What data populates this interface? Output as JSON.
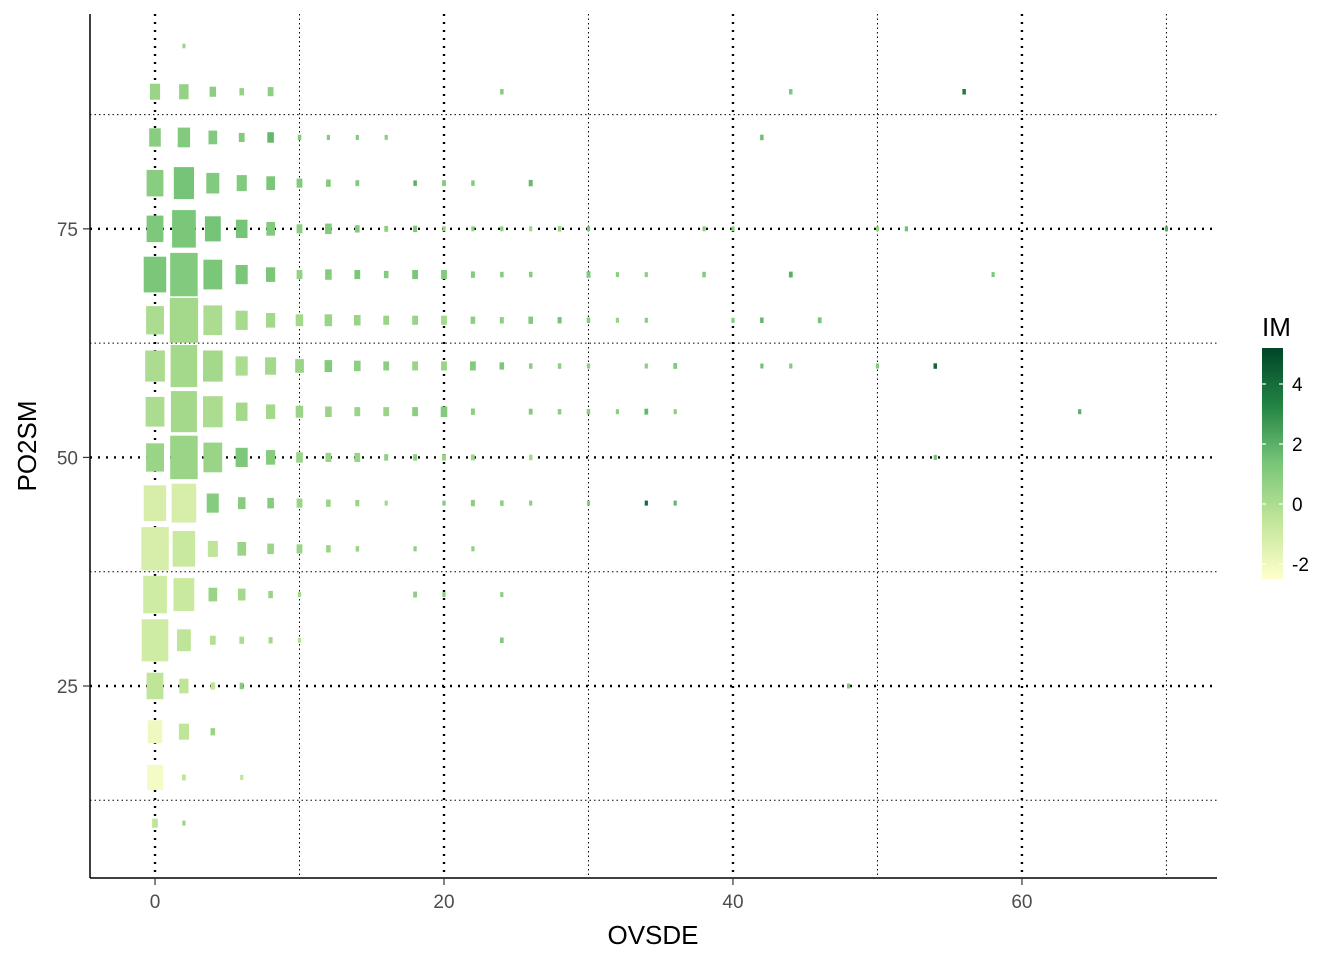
{
  "chart_data": {
    "type": "heatmap",
    "title": "",
    "xlabel": "OVSDE",
    "ylabel": "PO2SM",
    "xlim": [
      -4.5,
      73.5
    ],
    "ylim": [
      4,
      98.5
    ],
    "x_ticks": [
      0,
      20,
      40,
      60
    ],
    "y_ticks": [
      25,
      50,
      75
    ],
    "x_tick_labels": [
      "0",
      "20",
      "40",
      "60"
    ],
    "y_tick_labels": [
      "25",
      "50",
      "75"
    ],
    "x_minor_gridlines": [
      10,
      30,
      50,
      70
    ],
    "y_minor_gridlines": [
      12.5,
      37.5,
      62.5,
      87.5
    ],
    "grid": true,
    "legend": {
      "title": "IM",
      "position": "right",
      "range": [
        -2.5,
        5.2
      ],
      "tick_values": [
        4,
        2,
        0,
        -2
      ],
      "tick_labels": [
        "4",
        "2",
        "0",
        "-2"
      ],
      "color_stops": [
        "#ffffcc",
        "#c2e699",
        "#78c679",
        "#238443",
        "#004529"
      ]
    },
    "columns": [
      "x",
      "y",
      "size",
      "im"
    ],
    "cells": [
      [
        2,
        95,
        0.1,
        0.5
      ],
      [
        0,
        90,
        0.35,
        0.5
      ],
      [
        2,
        90,
        0.33,
        0.6
      ],
      [
        4,
        90,
        0.22,
        0.8
      ],
      [
        6,
        90,
        0.16,
        0.6
      ],
      [
        8,
        90,
        0.2,
        0.8
      ],
      [
        24,
        90,
        0.12,
        1.0
      ],
      [
        44,
        90,
        0.12,
        1.2
      ],
      [
        56,
        90,
        0.12,
        3.5
      ],
      [
        0,
        85,
        0.4,
        0.9
      ],
      [
        2,
        85,
        0.43,
        1.1
      ],
      [
        4,
        85,
        0.3,
        1.1
      ],
      [
        6,
        85,
        0.2,
        1.1
      ],
      [
        8,
        85,
        0.23,
        1.8
      ],
      [
        10,
        85,
        0.12,
        1.1
      ],
      [
        12,
        85,
        0.11,
        1.1
      ],
      [
        14,
        85,
        0.11,
        1.1
      ],
      [
        16,
        85,
        0.11,
        0.8
      ],
      [
        42,
        85,
        0.12,
        1.5
      ],
      [
        0,
        80,
        0.58,
        0.9
      ],
      [
        2,
        80,
        0.7,
        1.4
      ],
      [
        4,
        80,
        0.45,
        1.1
      ],
      [
        6,
        80,
        0.35,
        1.1
      ],
      [
        8,
        80,
        0.3,
        1.3
      ],
      [
        10,
        80,
        0.2,
        1.1
      ],
      [
        12,
        80,
        0.16,
        1.1
      ],
      [
        14,
        80,
        0.13,
        1.1
      ],
      [
        18,
        80,
        0.12,
        2.0
      ],
      [
        20,
        80,
        0.13,
        1.1
      ],
      [
        22,
        80,
        0.12,
        1.1
      ],
      [
        26,
        80,
        0.14,
        1.7
      ],
      [
        0,
        75,
        0.58,
        1.2
      ],
      [
        2,
        75,
        0.82,
        1.3
      ],
      [
        4,
        75,
        0.55,
        1.4
      ],
      [
        6,
        75,
        0.4,
        1.4
      ],
      [
        8,
        75,
        0.3,
        1.1
      ],
      [
        10,
        75,
        0.2,
        0.8
      ],
      [
        12,
        75,
        0.23,
        1.1
      ],
      [
        14,
        75,
        0.16,
        1.1
      ],
      [
        16,
        75,
        0.13,
        0.8
      ],
      [
        18,
        75,
        0.14,
        1.3
      ],
      [
        20,
        75,
        0.11,
        0.5
      ],
      [
        22,
        75,
        0.11,
        0.8
      ],
      [
        24,
        75,
        0.11,
        0.8
      ],
      [
        26,
        75,
        0.11,
        0.5
      ],
      [
        28,
        75,
        0.12,
        0.5
      ],
      [
        30,
        75,
        0.11,
        1.3
      ],
      [
        38,
        75,
        0.11,
        0.8
      ],
      [
        40,
        75,
        0.11,
        0.8
      ],
      [
        50,
        75,
        0.11,
        0.5
      ],
      [
        52,
        75,
        0.11,
        1.5
      ],
      [
        70,
        75,
        0.11,
        2.0
      ],
      [
        0,
        70,
        0.78,
        1.3
      ],
      [
        2,
        70,
        0.95,
        1.1
      ],
      [
        4,
        70,
        0.65,
        1.3
      ],
      [
        6,
        70,
        0.42,
        1.3
      ],
      [
        8,
        70,
        0.32,
        1.3
      ],
      [
        10,
        70,
        0.2,
        0.6
      ],
      [
        12,
        70,
        0.23,
        1.0
      ],
      [
        14,
        70,
        0.2,
        1.3
      ],
      [
        16,
        70,
        0.16,
        1.1
      ],
      [
        18,
        70,
        0.2,
        1.3
      ],
      [
        20,
        70,
        0.2,
        1.1
      ],
      [
        22,
        70,
        0.14,
        1.1
      ],
      [
        24,
        70,
        0.12,
        1.1
      ],
      [
        26,
        70,
        0.12,
        1.0
      ],
      [
        30,
        70,
        0.14,
        1.1
      ],
      [
        32,
        70,
        0.11,
        0.8
      ],
      [
        34,
        70,
        0.11,
        0.8
      ],
      [
        38,
        70,
        0.12,
        1.1
      ],
      [
        44,
        70,
        0.13,
        2.0
      ],
      [
        58,
        70,
        0.11,
        1.3
      ],
      [
        0,
        65,
        0.62,
        0.0
      ],
      [
        2,
        65,
        0.98,
        0.2
      ],
      [
        4,
        65,
        0.65,
        0.0
      ],
      [
        6,
        65,
        0.42,
        0.1
      ],
      [
        8,
        65,
        0.32,
        0.2
      ],
      [
        10,
        65,
        0.26,
        0.2
      ],
      [
        12,
        65,
        0.26,
        0.5
      ],
      [
        14,
        65,
        0.23,
        0.5
      ],
      [
        16,
        65,
        0.2,
        0.5
      ],
      [
        18,
        65,
        0.2,
        0.5
      ],
      [
        20,
        65,
        0.2,
        0.2
      ],
      [
        22,
        65,
        0.16,
        0.8
      ],
      [
        24,
        65,
        0.14,
        0.8
      ],
      [
        26,
        65,
        0.16,
        1.1
      ],
      [
        28,
        65,
        0.14,
        1.4
      ],
      [
        30,
        65,
        0.12,
        0.9
      ],
      [
        32,
        65,
        0.11,
        0.6
      ],
      [
        34,
        65,
        0.11,
        0.9
      ],
      [
        40,
        65,
        0.11,
        1.1
      ],
      [
        42,
        65,
        0.12,
        1.8
      ],
      [
        46,
        65,
        0.13,
        1.3
      ],
      [
        0,
        60,
        0.68,
        0.0
      ],
      [
        2,
        60,
        0.92,
        0.2
      ],
      [
        4,
        60,
        0.68,
        0.2
      ],
      [
        6,
        60,
        0.42,
        0.0
      ],
      [
        8,
        60,
        0.38,
        0.2
      ],
      [
        10,
        60,
        0.3,
        0.5
      ],
      [
        12,
        60,
        0.26,
        1.1
      ],
      [
        14,
        60,
        0.23,
        0.8
      ],
      [
        16,
        60,
        0.2,
        0.8
      ],
      [
        18,
        60,
        0.2,
        0.5
      ],
      [
        20,
        60,
        0.2,
        0.5
      ],
      [
        22,
        60,
        0.2,
        1.1
      ],
      [
        24,
        60,
        0.16,
        1.2
      ],
      [
        26,
        60,
        0.12,
        0.8
      ],
      [
        28,
        60,
        0.12,
        0.8
      ],
      [
        30,
        60,
        0.11,
        0.8
      ],
      [
        34,
        60,
        0.11,
        0.8
      ],
      [
        36,
        60,
        0.13,
        1.1
      ],
      [
        42,
        60,
        0.11,
        1.5
      ],
      [
        44,
        60,
        0.11,
        1.1
      ],
      [
        50,
        60,
        0.11,
        1.1
      ],
      [
        54,
        60,
        0.12,
        4.2
      ],
      [
        0,
        55,
        0.65,
        0.0
      ],
      [
        2,
        55,
        0.9,
        0.2
      ],
      [
        4,
        55,
        0.68,
        0.0
      ],
      [
        6,
        55,
        0.4,
        0.2
      ],
      [
        8,
        55,
        0.32,
        0.2
      ],
      [
        10,
        55,
        0.26,
        0.5
      ],
      [
        12,
        55,
        0.23,
        0.5
      ],
      [
        14,
        55,
        0.2,
        0.5
      ],
      [
        16,
        55,
        0.2,
        0.5
      ],
      [
        18,
        55,
        0.2,
        0.8
      ],
      [
        20,
        55,
        0.23,
        1.1
      ],
      [
        22,
        55,
        0.14,
        0.8
      ],
      [
        26,
        55,
        0.13,
        1.1
      ],
      [
        28,
        55,
        0.12,
        0.8
      ],
      [
        30,
        55,
        0.12,
        0.8
      ],
      [
        32,
        55,
        0.11,
        0.8
      ],
      [
        34,
        55,
        0.13,
        1.8
      ],
      [
        36,
        55,
        0.11,
        0.8
      ],
      [
        64,
        55,
        0.11,
        2.0
      ],
      [
        0,
        50,
        0.62,
        0.5
      ],
      [
        2,
        50,
        0.95,
        0.5
      ],
      [
        4,
        50,
        0.65,
        0.5
      ],
      [
        6,
        50,
        0.42,
        1.2
      ],
      [
        8,
        50,
        0.32,
        1.0
      ],
      [
        10,
        50,
        0.23,
        0.5
      ],
      [
        12,
        50,
        0.2,
        0.5
      ],
      [
        14,
        50,
        0.2,
        0.5
      ],
      [
        16,
        50,
        0.14,
        0.8
      ],
      [
        18,
        50,
        0.14,
        0.8
      ],
      [
        20,
        50,
        0.14,
        0.5
      ],
      [
        22,
        50,
        0.13,
        0.5
      ],
      [
        26,
        50,
        0.12,
        0.2
      ],
      [
        54,
        50,
        0.11,
        1.5
      ],
      [
        0,
        45,
        0.78,
        -1.2
      ],
      [
        2,
        45,
        0.85,
        -1.2
      ],
      [
        4,
        45,
        0.42,
        1.0
      ],
      [
        6,
        45,
        0.26,
        1.0
      ],
      [
        8,
        45,
        0.23,
        1.0
      ],
      [
        10,
        45,
        0.2,
        0.5
      ],
      [
        12,
        45,
        0.16,
        0.5
      ],
      [
        14,
        45,
        0.14,
        0.5
      ],
      [
        16,
        45,
        0.11,
        0.2
      ],
      [
        20,
        45,
        0.11,
        1.1
      ],
      [
        22,
        45,
        0.14,
        0.8
      ],
      [
        24,
        45,
        0.12,
        0.8
      ],
      [
        26,
        45,
        0.11,
        0.8
      ],
      [
        30,
        45,
        0.11,
        0.8
      ],
      [
        34,
        45,
        0.11,
        4.0
      ],
      [
        36,
        45,
        0.11,
        1.8
      ],
      [
        0,
        40,
        0.95,
        -1.2
      ],
      [
        2,
        40,
        0.78,
        -0.8
      ],
      [
        4,
        40,
        0.35,
        -0.5
      ],
      [
        6,
        40,
        0.3,
        0.5
      ],
      [
        8,
        40,
        0.23,
        0.5
      ],
      [
        10,
        40,
        0.2,
        0.5
      ],
      [
        12,
        40,
        0.16,
        0.5
      ],
      [
        14,
        40,
        0.12,
        0.5
      ],
      [
        18,
        40,
        0.11,
        0.8
      ],
      [
        22,
        40,
        0.11,
        0.8
      ],
      [
        0,
        35,
        0.82,
        -1.0
      ],
      [
        2,
        35,
        0.72,
        -0.8
      ],
      [
        4,
        35,
        0.3,
        0.5
      ],
      [
        6,
        35,
        0.26,
        0.2
      ],
      [
        8,
        35,
        0.16,
        0.5
      ],
      [
        10,
        35,
        0.11,
        0.2
      ],
      [
        18,
        35,
        0.13,
        0.8
      ],
      [
        20,
        35,
        0.11,
        0.8
      ],
      [
        24,
        35,
        0.11,
        0.8
      ],
      [
        0,
        30,
        0.92,
        -1.0
      ],
      [
        2,
        30,
        0.48,
        -0.5
      ],
      [
        4,
        30,
        0.2,
        -0.2
      ],
      [
        6,
        30,
        0.16,
        0.0
      ],
      [
        8,
        30,
        0.14,
        0.2
      ],
      [
        10,
        30,
        0.11,
        -0.2
      ],
      [
        24,
        30,
        0.12,
        1.3
      ],
      [
        0,
        25,
        0.58,
        -0.5
      ],
      [
        2,
        25,
        0.32,
        -0.5
      ],
      [
        4,
        25,
        0.16,
        -0.5
      ],
      [
        6,
        25,
        0.14,
        1.1
      ],
      [
        48,
        25,
        0.11,
        1.1
      ],
      [
        0,
        20,
        0.5,
        -2.0
      ],
      [
        2,
        20,
        0.35,
        -0.5
      ],
      [
        4,
        20,
        0.16,
        0.5
      ],
      [
        0,
        15,
        0.55,
        -2.2
      ],
      [
        2,
        15,
        0.13,
        -0.5
      ],
      [
        6,
        15,
        0.11,
        -0.5
      ],
      [
        0,
        10,
        0.2,
        -0.5
      ],
      [
        2,
        10,
        0.11,
        0.5
      ]
    ]
  }
}
